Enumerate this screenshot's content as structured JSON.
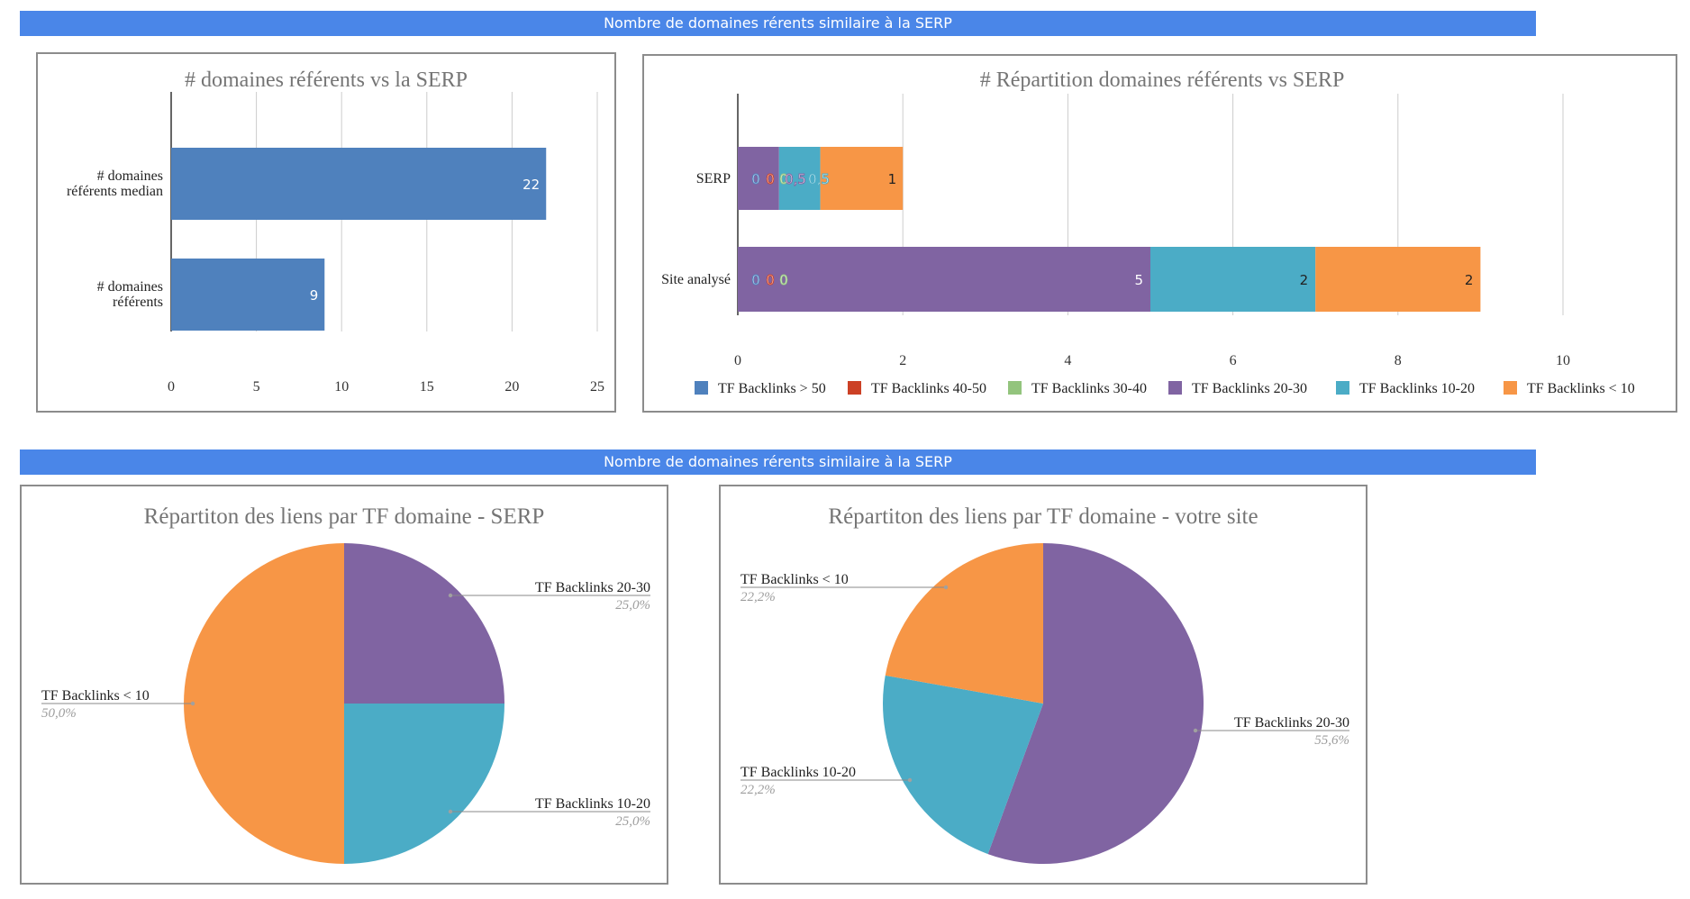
{
  "banners": {
    "top": "Nombre de domaines rérents similaire à la SERP",
    "bottom": "Nombre de domaines rérents similaire à la SERP"
  },
  "colors": {
    "banner": "#4a86e8",
    "blue": "#4f81bd",
    "red": "#cc4125",
    "green": "#93c47d",
    "purple": "#8064a2",
    "teal": "#4bacc6",
    "orange": "#f79646"
  },
  "chart_data": [
    {
      "type": "bar",
      "orientation": "horizontal",
      "title": "# domaines référents vs la SERP",
      "categories": [
        "# domaines référents median",
        "# domaines référents"
      ],
      "values": [
        22,
        9
      ],
      "data_labels": [
        "22",
        "9"
      ],
      "xlim": [
        0,
        25
      ],
      "xticks": [
        "0",
        "5",
        "10",
        "15",
        "20",
        "25"
      ],
      "grid": true,
      "legend": "none"
    },
    {
      "type": "bar",
      "orientation": "horizontal",
      "stacked": true,
      "title": "# Répartition domaines référents vs SERP",
      "categories": [
        "SERP",
        "Site analysé"
      ],
      "xlim": [
        0,
        10
      ],
      "xticks": [
        "0",
        "2",
        "4",
        "6",
        "8",
        "10"
      ],
      "grid": true,
      "legend": "bottom",
      "series": [
        {
          "name": "TF Backlinks > 50",
          "values": [
            0,
            0
          ],
          "labels": [
            "0",
            "0"
          ]
        },
        {
          "name": "TF Backlinks 40-50",
          "values": [
            0,
            0
          ],
          "labels": [
            "0",
            "0"
          ]
        },
        {
          "name": "TF Backlinks 30-40",
          "values": [
            0,
            0
          ],
          "labels": [
            "0",
            "0"
          ]
        },
        {
          "name": "TF Backlinks 20-30",
          "values": [
            0.5,
            5
          ],
          "labels": [
            "0,5",
            "5"
          ]
        },
        {
          "name": "TF Backlinks 10-20",
          "values": [
            0.5,
            2
          ],
          "labels": [
            "0,5",
            "2"
          ]
        },
        {
          "name": "TF Backlinks < 10",
          "values": [
            1,
            2
          ],
          "labels": [
            "1",
            "2"
          ]
        }
      ]
    },
    {
      "type": "pie",
      "title": "Répartiton des liens par TF domaine - SERP",
      "slices": [
        {
          "label": "TF Backlinks 20-30",
          "value": 25.0,
          "percent": "25,0%"
        },
        {
          "label": "TF Backlinks 10-20",
          "value": 25.0,
          "percent": "25,0%"
        },
        {
          "label": "TF Backlinks < 10",
          "value": 50.0,
          "percent": "50,0%"
        }
      ]
    },
    {
      "type": "pie",
      "title": "Répartiton des liens par TF domaine - votre site",
      "slices": [
        {
          "label": "TF Backlinks 20-30",
          "value": 55.6,
          "percent": "55,6%"
        },
        {
          "label": "TF Backlinks 10-20",
          "value": 22.2,
          "percent": "22,2%"
        },
        {
          "label": "TF Backlinks < 10",
          "value": 22.2,
          "percent": "22,2%"
        }
      ]
    }
  ]
}
